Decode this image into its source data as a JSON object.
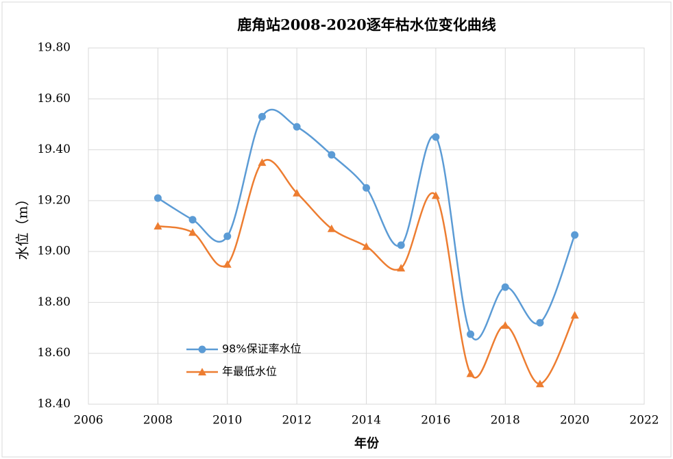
{
  "chart_data": {
    "type": "line",
    "title": "鹿角站2008-2020逐年枯水位变化曲线",
    "xlabel": "年份",
    "ylabel": "水位（m）",
    "x": [
      2008,
      2009,
      2010,
      2011,
      2012,
      2013,
      2014,
      2015,
      2016,
      2017,
      2018,
      2019,
      2020
    ],
    "series": [
      {
        "name": "98%保证率水位",
        "color": "#5b9bd5",
        "marker": "circle",
        "values": [
          19.21,
          19.125,
          19.06,
          19.53,
          19.49,
          19.38,
          19.25,
          19.025,
          19.45,
          18.675,
          18.86,
          18.72,
          19.065
        ]
      },
      {
        "name": "年最低水位",
        "color": "#ed7d31",
        "marker": "triangle",
        "values": [
          19.1,
          19.075,
          18.95,
          19.35,
          19.23,
          19.09,
          19.02,
          18.935,
          19.22,
          18.52,
          18.71,
          18.48,
          18.75
        ]
      }
    ],
    "xlim": [
      2006,
      2022
    ],
    "xticks": [
      2006,
      2008,
      2010,
      2012,
      2014,
      2016,
      2018,
      2020,
      2022
    ],
    "ylim": [
      18.4,
      19.8
    ],
    "yticks": [
      {
        "value": 18.4,
        "label": "18.40"
      },
      {
        "value": 18.6,
        "label": "18.60"
      },
      {
        "value": 18.8,
        "label": "18.80"
      },
      {
        "value": 19.0,
        "label": "19.00"
      },
      {
        "value": 19.2,
        "label": "19.20"
      },
      {
        "value": 19.4,
        "label": "19.40"
      },
      {
        "value": 19.6,
        "label": "19.60"
      },
      {
        "value": 19.8,
        "label": "19.80"
      }
    ],
    "grid": true,
    "smooth": true,
    "legend": "lower left"
  }
}
